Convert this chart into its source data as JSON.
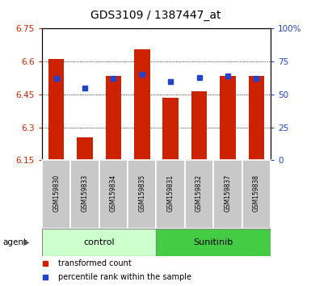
{
  "title": "GDS3109 / 1387447_at",
  "samples": [
    "GSM159830",
    "GSM159833",
    "GSM159834",
    "GSM159835",
    "GSM159831",
    "GSM159832",
    "GSM159837",
    "GSM159838"
  ],
  "bar_values": [
    6.61,
    6.255,
    6.535,
    6.655,
    6.435,
    6.465,
    6.535,
    6.535
  ],
  "percentile_values": [
    62,
    55,
    62,
    65,
    60,
    63,
    64,
    62
  ],
  "ymin": 6.15,
  "ymax": 6.75,
  "yticks": [
    6.15,
    6.3,
    6.45,
    6.6,
    6.75
  ],
  "y2ticks": [
    0,
    25,
    50,
    75,
    100
  ],
  "y2labels": [
    "0",
    "25",
    "50",
    "75",
    "100%"
  ],
  "bar_color": "#cc2200",
  "dot_color": "#2244cc",
  "control_color": "#ccffcc",
  "sunitinib_color": "#44cc44",
  "label_bg_color": "#c8c8c8",
  "legend_bar_label": "transformed count",
  "legend_dot_label": "percentile rank within the sample",
  "agent_label": "agent"
}
